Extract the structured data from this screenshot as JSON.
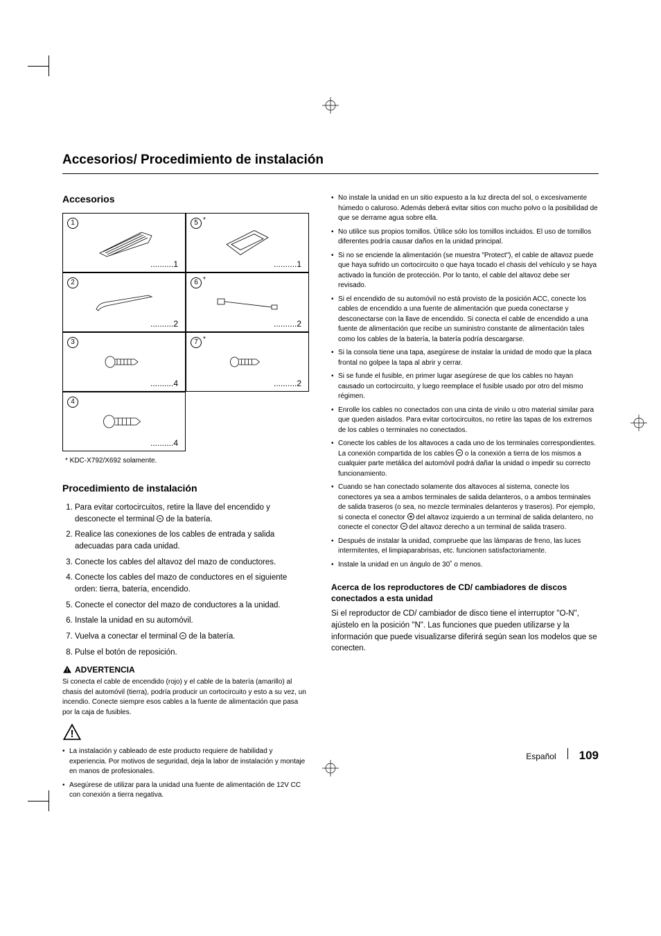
{
  "page": {
    "title": "Accesorios/ Procedimiento de instalación",
    "footer_lang": "Español",
    "footer_page": "109"
  },
  "left": {
    "accesorios_heading": "Accesorios",
    "cells": [
      {
        "num": "1",
        "star": "",
        "qty": "..........1"
      },
      {
        "num": "5",
        "star": "*",
        "qty": "..........1"
      },
      {
        "num": "2",
        "star": "",
        "qty": "..........2"
      },
      {
        "num": "6",
        "star": "*",
        "qty": "..........2"
      },
      {
        "num": "3",
        "star": "",
        "qty": "..........4"
      },
      {
        "num": "7",
        "star": "*",
        "qty": "..........2"
      },
      {
        "num": "4",
        "star": "",
        "qty": "..........4"
      }
    ],
    "footnote": "* KDC-X792/X692 solamente.",
    "proc_heading": "Procedimiento de instalación",
    "steps": [
      "Para evitar cortocircuitos, retire la llave del encendido y desconecte el terminal {minus} de la batería.",
      "Realice las conexiones de los cables de entrada y salida adecuadas para cada unidad.",
      "Conecte los cables del altavoz del mazo de conductores.",
      "Conecte los cables del mazo de conductores en el siguiente orden: tierra, batería, encendido.",
      "Conecte el conector del mazo de conductores a la unidad.",
      "Instale la unidad en su automóvil.",
      "Vuelva a conectar el terminal {minus} de la batería.",
      "Pulse el botón de reposición."
    ],
    "warn_label": "ADVERTENCIA",
    "warn_body": "Si conecta el cable de encendido (rojo) y el cable de la batería (amarillo) al chasis del automóvil (tierra), podría producir un cortocircuito y esto a su vez, un incendio. Conecte siempre esos cables a la fuente de alimentación que pasa por la caja de fusibles.",
    "caution_bullets": [
      "La instalación y cableado de este producto requiere de habilidad y experiencia. Por motivos de seguridad, deja la labor de instalación y montaje en manos de profesionales.",
      "Asegúrese de utilizar para la unidad una fuente de alimentación de 12V CC con conexión a tierra negativa."
    ]
  },
  "right": {
    "bullets": [
      "No instale la unidad en un sitio expuesto a la luz directa del sol, o excesivamente húmedo o caluroso. Además deberá evitar sitios con mucho polvo o la posibilidad de que se derrame agua sobre ella.",
      "No utilice sus propios tornillos. Útilice sólo los tornillos incluidos. El uso de tornillos diferentes podría causar daños en la unidad principal.",
      "Si no se enciende la alimentación (se muestra \"Protect\"), el cable de altavoz puede que haya sufrido un cortocircuito o que haya tocado el chasis del vehículo y se haya activado la función de protección. Por lo tanto, el cable del altavoz debe ser revisado.",
      "Si el encendido de su automóvil no está provisto de la posición ACC, conecte los cables de encendido a una fuente de alimentación que pueda conectarse y desconectarse con la llave de encendido. Si conecta el cable de encendido a una fuente de alimentación que recibe un suministro constante de alimentación tales como los cables de la batería, la batería podría descargarse.",
      "Si la consola tiene una tapa, asegúrese de instalar la unidad de modo que la placa frontal no golpee la tapa al abrir y cerrar.",
      "Si se funde el fusible, en primer lugar asegúrese de que los cables no hayan causado un cortocircuito, y luego reemplace el fusible usado por otro del mismo régimen.",
      "Enrolle los cables no conectados con una cinta de vinilo u otro material similar para que queden aislados. Para evitar cortocircuitos, no retire las tapas de los extremos de los cables o terminales no conectados.",
      "Conecte los cables de los altavoces a cada uno de los terminales correspondientes. La conexión compartida de los cables {minus} o la conexión a tierra de los mismos a cualquier parte metálica del automóvil podrá dañar la unidad o impedir su correcto funcionamiento.",
      "Cuando se han conectado solamente dos altavoces al sistema, conecte los conectores ya sea a ambos terminales de salida delanteros, o a ambos terminales de salida traseros (o sea, no mezcle terminales delanteros y traseros). Por ejemplo, si conecta el conector {plus} del altavoz izquierdo a un terminal de salida delantero, no conecte el conector {minus} del altavoz derecho a un terminal de salida trasero.",
      "Después de instalar la unidad, compruebe que las lámparas de freno, las luces intermitentes, el limpiaparabrisas, etc. funcionen satisfactoriamente.",
      "Instale la unidad en un ángulo de 30˚ o menos."
    ],
    "sub_heading": "Acerca de los reproductores de CD/ cambiadores de discos conectados a esta unidad",
    "sub_body": "Si el reproductor de CD/ cambiador de disco tiene el interruptor \"O-N\", ajústelo en la posición \"N\". Las funciones que pueden utilizarse y la información que puede visualizarse diferirá según sean los modelos que se conecten."
  }
}
